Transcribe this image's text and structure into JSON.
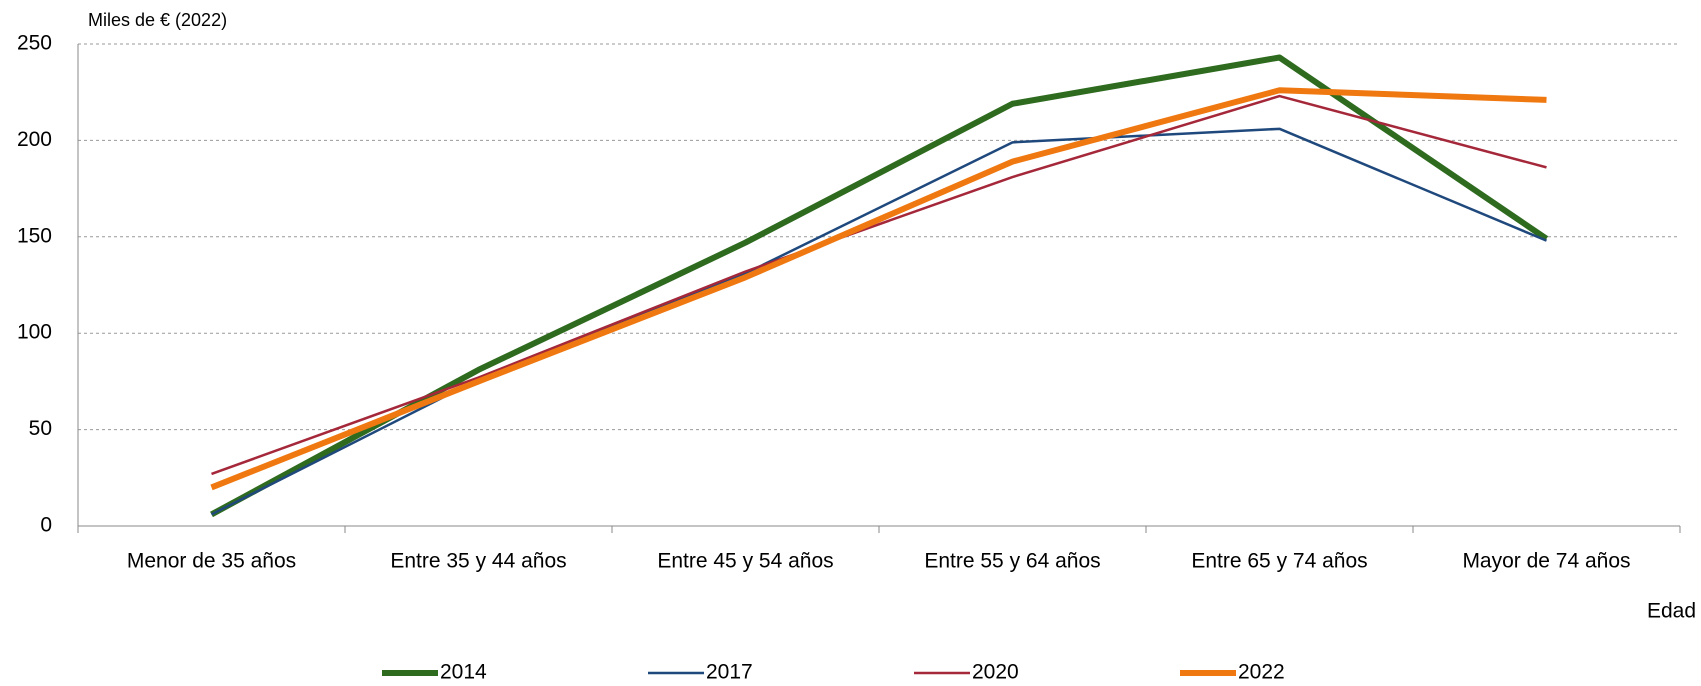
{
  "chart_data": {
    "type": "line",
    "y_axis_label": "Miles de € (2022)",
    "x_axis_label": "Edad",
    "categories": [
      "Menor de 35 años",
      "Entre 35 y 44 años",
      "Entre 45 y 54 años",
      "Entre 55 y 64 años",
      "Entre 65 y 74 años",
      "Mayor de 74 años"
    ],
    "series": [
      {
        "name": "2014",
        "color": "#2e6b1f",
        "line_width": 6,
        "values": [
          6,
          81,
          147,
          219,
          243,
          149
        ]
      },
      {
        "name": "2017",
        "color": "#1f497d",
        "line_width": 2.5,
        "values": [
          6,
          76,
          131,
          199,
          206,
          148
        ]
      },
      {
        "name": "2020",
        "color": "#a5283a",
        "line_width": 2.5,
        "values": [
          27,
          77,
          132,
          181,
          223,
          186
        ]
      },
      {
        "name": "2022",
        "color": "#f07810",
        "line_width": 6,
        "values": [
          20,
          75,
          129,
          189,
          226,
          221
        ]
      }
    ],
    "ylim": [
      0,
      250
    ],
    "yticks": [
      0,
      50,
      100,
      150,
      200,
      250
    ],
    "grid": true
  }
}
